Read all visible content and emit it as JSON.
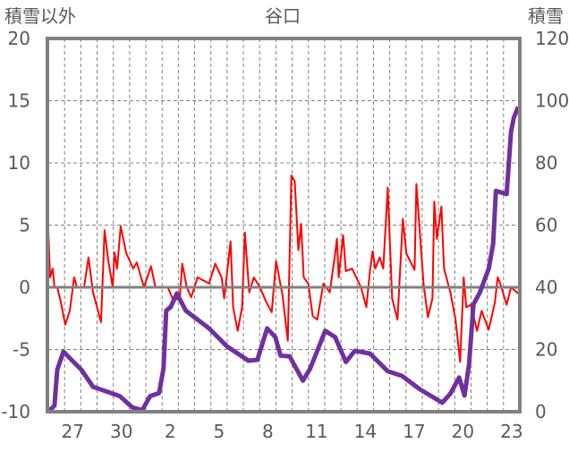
{
  "chart_data": {
    "type": "line",
    "title": "谷口",
    "ylabel_left": "積雪以外",
    "ylabel_right": "積雪",
    "ylim_left": [
      -10,
      20
    ],
    "ylim_right": [
      0,
      120
    ],
    "yticks_left": [
      "20",
      "15",
      "10",
      "5",
      "0",
      "-5",
      "-10"
    ],
    "yticks_right": [
      "120",
      "100",
      "80",
      "60",
      "40",
      "20",
      "0"
    ],
    "x_days_total": 29,
    "x_tick_labels": [
      {
        "day_index": 1,
        "label": "27"
      },
      {
        "day_index": 4,
        "label": "30"
      },
      {
        "day_index": 7,
        "label": "2"
      },
      {
        "day_index": 10,
        "label": "5"
      },
      {
        "day_index": 13,
        "label": "8"
      },
      {
        "day_index": 16,
        "label": "11"
      },
      {
        "day_index": 19,
        "label": "14"
      },
      {
        "day_index": 22,
        "label": "17"
      },
      {
        "day_index": 25,
        "label": "20"
      },
      {
        "day_index": 28,
        "label": "23"
      }
    ],
    "grid": true,
    "colors": {
      "other": "#ff0000",
      "snow": "#7030a0",
      "axis": "#808080",
      "grid": "#808080"
    },
    "series": [
      {
        "name": "積雪以外",
        "axis": "left",
        "points": [
          [
            0,
            4.6
          ],
          [
            0.11,
            0.8
          ],
          [
            0.27,
            1.5
          ],
          [
            0.38,
            0
          ],
          [
            0.55,
            0
          ],
          [
            0.77,
            -1.2
          ],
          [
            1.04,
            -3
          ],
          [
            1.32,
            -1.9
          ],
          [
            1.59,
            0.8
          ],
          [
            1.76,
            0
          ],
          [
            2.2,
            0
          ],
          [
            2.47,
            2.4
          ],
          [
            2.75,
            -0.4
          ],
          [
            3.24,
            -2.8
          ],
          [
            3.46,
            4.6
          ],
          [
            3.68,
            2.2
          ],
          [
            3.96,
            0
          ],
          [
            4.07,
            2.8
          ],
          [
            4.23,
            1.5
          ],
          [
            4.45,
            4.9
          ],
          [
            4.78,
            2.8
          ],
          [
            5.22,
            1.5
          ],
          [
            5.44,
            2
          ],
          [
            5.88,
            0
          ],
          [
            6.32,
            1.7
          ],
          [
            6.59,
            0
          ],
          [
            7.36,
            0
          ],
          [
            7.64,
            -0.9
          ],
          [
            8.08,
            -1
          ],
          [
            8.24,
            1.9
          ],
          [
            8.52,
            0
          ],
          [
            8.79,
            -0.8
          ],
          [
            9.18,
            0.8
          ],
          [
            9.89,
            0.3
          ],
          [
            10.27,
            1.9
          ],
          [
            10.66,
            0.8
          ],
          [
            10.82,
            -0.9
          ],
          [
            11.21,
            3.7
          ],
          [
            11.37,
            -1.6
          ],
          [
            11.65,
            -3.5
          ],
          [
            11.92,
            -1.6
          ],
          [
            12.09,
            4.4
          ],
          [
            12.36,
            -0.4
          ],
          [
            12.64,
            0.8
          ],
          [
            13.02,
            0
          ],
          [
            13.41,
            -1.2
          ],
          [
            13.74,
            -2
          ],
          [
            14.01,
            2.1
          ],
          [
            14.4,
            -0.6
          ],
          [
            14.73,
            -4.3
          ],
          [
            14.95,
            9
          ],
          [
            15.16,
            8.5
          ],
          [
            15.38,
            3
          ],
          [
            15.55,
            5.1
          ],
          [
            15.71,
            0.8
          ],
          [
            15.99,
            0.3
          ],
          [
            16.26,
            -2.3
          ],
          [
            16.54,
            -2.6
          ],
          [
            16.92,
            0.3
          ],
          [
            17.31,
            -0.4
          ],
          [
            17.64,
            2.7
          ],
          [
            17.75,
            3.9
          ],
          [
            17.86,
            0.8
          ],
          [
            18.13,
            4.2
          ],
          [
            18.3,
            1.3
          ],
          [
            18.68,
            1.5
          ],
          [
            19.23,
            0
          ],
          [
            19.56,
            -1.6
          ],
          [
            19.78,
            1.3
          ],
          [
            19.95,
            2.9
          ],
          [
            20.11,
            1.5
          ],
          [
            20.38,
            2.4
          ],
          [
            20.6,
            1.5
          ],
          [
            20.88,
            8
          ],
          [
            21.15,
            -0.9
          ],
          [
            21.48,
            -2.6
          ],
          [
            21.81,
            5.5
          ],
          [
            22.03,
            2.7
          ],
          [
            22.53,
            1.4
          ],
          [
            22.64,
            8.3
          ],
          [
            23.08,
            0.3
          ],
          [
            23.35,
            -2.4
          ],
          [
            23.63,
            -0.9
          ],
          [
            23.74,
            6.9
          ],
          [
            23.9,
            3.9
          ],
          [
            24.18,
            6.5
          ],
          [
            24.34,
            1.5
          ],
          [
            24.73,
            -0.4
          ],
          [
            25.05,
            -2.6
          ],
          [
            25.33,
            -6
          ],
          [
            25.55,
            0.8
          ],
          [
            25.71,
            -1.6
          ],
          [
            25.99,
            -1.4
          ],
          [
            26.37,
            -3.5
          ],
          [
            26.65,
            -1.9
          ],
          [
            27.09,
            -3.4
          ],
          [
            27.47,
            -1.2
          ],
          [
            27.64,
            0.8
          ],
          [
            27.8,
            0.3
          ],
          [
            28.19,
            -1.4
          ],
          [
            28.46,
            0
          ],
          [
            28.9,
            -0.5
          ]
        ]
      },
      {
        "name": "積雪",
        "axis": "right",
        "points": [
          [
            0,
            0
          ],
          [
            0.38,
            2
          ],
          [
            0.55,
            13.5
          ],
          [
            0.93,
            19.3
          ],
          [
            2.03,
            13.5
          ],
          [
            2.75,
            8
          ],
          [
            4.4,
            5
          ],
          [
            5.16,
            1.4
          ],
          [
            5.77,
            0.5
          ],
          [
            6.26,
            5
          ],
          [
            6.81,
            6
          ],
          [
            7.09,
            14
          ],
          [
            7.25,
            32.5
          ],
          [
            7.53,
            33.7
          ],
          [
            7.91,
            38
          ],
          [
            8.46,
            32.5
          ],
          [
            9.89,
            26.8
          ],
          [
            10.99,
            21
          ],
          [
            12.31,
            16.4
          ],
          [
            12.86,
            16.7
          ],
          [
            13.46,
            26.8
          ],
          [
            13.96,
            24
          ],
          [
            14.29,
            18
          ],
          [
            14.84,
            17.8
          ],
          [
            15.66,
            10
          ],
          [
            16.1,
            13.8
          ],
          [
            16.65,
            21
          ],
          [
            17.03,
            26
          ],
          [
            17.64,
            24
          ],
          [
            18.3,
            16
          ],
          [
            18.85,
            19.6
          ],
          [
            19.78,
            18.7
          ],
          [
            20.88,
            13
          ],
          [
            21.76,
            11.5
          ],
          [
            22.86,
            7.2
          ],
          [
            24.23,
            2.9
          ],
          [
            24.73,
            5.8
          ],
          [
            25.27,
            11
          ],
          [
            25.6,
            5.2
          ],
          [
            25.88,
            15.3
          ],
          [
            26.15,
            34.5
          ],
          [
            26.54,
            38.3
          ],
          [
            27.09,
            46
          ],
          [
            27.36,
            54
          ],
          [
            27.53,
            71
          ],
          [
            28.19,
            70
          ],
          [
            28.46,
            90
          ],
          [
            28.63,
            94.5
          ],
          [
            28.9,
            98
          ]
        ]
      }
    ]
  }
}
